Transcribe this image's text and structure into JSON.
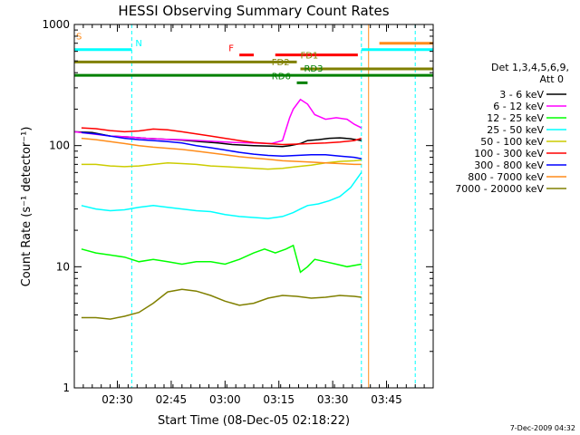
{
  "chart_data": {
    "type": "line",
    "title": "HESSI Observing Summary Count Rates",
    "xlabel": "Start Time (08-Dec-05 02:18:22)",
    "ylabel": "Count Rate (s⁻¹ detector⁻¹)",
    "yscale": "log",
    "xlim_minutes": [
      0,
      100
    ],
    "ylim": [
      1,
      1000
    ],
    "x_ticks": [
      {
        "t": 12,
        "label": "02:30"
      },
      {
        "t": 27,
        "label": "02:45"
      },
      {
        "t": 42,
        "label": "03:00"
      },
      {
        "t": 57,
        "label": "03:15"
      },
      {
        "t": 72,
        "label": "03:30"
      },
      {
        "t": 87,
        "label": "03:45"
      }
    ],
    "y_ticks": [
      {
        "v": 1,
        "label": "1"
      },
      {
        "v": 10,
        "label": "10"
      },
      {
        "v": 100,
        "label": "100"
      },
      {
        "v": 1000,
        "label": "1000"
      }
    ],
    "legend_header": [
      "Det 1,3,4,5,6,9,",
      "Att 0"
    ],
    "series": [
      {
        "name": "3 - 6 keV",
        "color": "#000000",
        "points": [
          [
            0,
            130
          ],
          [
            5,
            128
          ],
          [
            10,
            120
          ],
          [
            15,
            118
          ],
          [
            20,
            115
          ],
          [
            25,
            113
          ],
          [
            30,
            111
          ],
          [
            35,
            108
          ],
          [
            40,
            105
          ],
          [
            44,
            102
          ],
          [
            50,
            100
          ],
          [
            55,
            99
          ],
          [
            58,
            98
          ],
          [
            60,
            100
          ],
          [
            63,
            104
          ],
          [
            65,
            110
          ],
          [
            68,
            112
          ],
          [
            71,
            115
          ],
          [
            74,
            116
          ],
          [
            77,
            114
          ],
          [
            80,
            110
          ]
        ]
      },
      {
        "name": "6 - 12 keV",
        "color": "#ff00ff",
        "points": [
          [
            0,
            130
          ],
          [
            5,
            125
          ],
          [
            10,
            120
          ],
          [
            15,
            118
          ],
          [
            20,
            115
          ],
          [
            25,
            113
          ],
          [
            30,
            112
          ],
          [
            35,
            110
          ],
          [
            40,
            108
          ],
          [
            45,
            106
          ],
          [
            50,
            105
          ],
          [
            55,
            104
          ],
          [
            58,
            110
          ],
          [
            60,
            170
          ],
          [
            61,
            200
          ],
          [
            63,
            240
          ],
          [
            65,
            220
          ],
          [
            67,
            180
          ],
          [
            70,
            165
          ],
          [
            73,
            170
          ],
          [
            76,
            165
          ],
          [
            78,
            150
          ],
          [
            80,
            140
          ]
        ]
      },
      {
        "name": "12 - 25 keV",
        "color": "#00ff00",
        "points": [
          [
            2,
            14
          ],
          [
            6,
            13
          ],
          [
            10,
            12.5
          ],
          [
            14,
            12
          ],
          [
            18,
            11
          ],
          [
            22,
            11.5
          ],
          [
            26,
            11
          ],
          [
            30,
            10.5
          ],
          [
            34,
            11
          ],
          [
            38,
            11
          ],
          [
            42,
            10.5
          ],
          [
            46,
            11.5
          ],
          [
            50,
            13
          ],
          [
            53,
            14
          ],
          [
            56,
            13
          ],
          [
            59,
            14
          ],
          [
            61,
            15
          ],
          [
            63,
            9
          ],
          [
            65,
            10
          ],
          [
            67,
            11.5
          ],
          [
            70,
            11
          ],
          [
            73,
            10.5
          ],
          [
            76,
            10
          ],
          [
            80,
            10.5
          ]
        ]
      },
      {
        "name": "25 - 50 keV",
        "color": "#00ffff",
        "points": [
          [
            2,
            32
          ],
          [
            6,
            30
          ],
          [
            10,
            29
          ],
          [
            14,
            29.5
          ],
          [
            18,
            31
          ],
          [
            22,
            32
          ],
          [
            26,
            31
          ],
          [
            30,
            30
          ],
          [
            34,
            29
          ],
          [
            38,
            28.5
          ],
          [
            42,
            27
          ],
          [
            46,
            26
          ],
          [
            50,
            25.5
          ],
          [
            54,
            25
          ],
          [
            58,
            26
          ],
          [
            61,
            28
          ],
          [
            63,
            30
          ],
          [
            65,
            32
          ],
          [
            68,
            33
          ],
          [
            71,
            35
          ],
          [
            74,
            38
          ],
          [
            77,
            45
          ],
          [
            80,
            60
          ]
        ]
      },
      {
        "name": "50 - 100 keV",
        "color": "#cccc00",
        "points": [
          [
            2,
            70
          ],
          [
            6,
            70
          ],
          [
            10,
            68
          ],
          [
            14,
            67
          ],
          [
            18,
            68
          ],
          [
            22,
            70
          ],
          [
            26,
            72
          ],
          [
            30,
            71
          ],
          [
            34,
            70
          ],
          [
            38,
            68
          ],
          [
            42,
            67
          ],
          [
            46,
            66
          ],
          [
            50,
            65
          ],
          [
            54,
            64
          ],
          [
            58,
            65
          ],
          [
            62,
            67
          ],
          [
            66,
            69
          ],
          [
            70,
            72
          ],
          [
            74,
            74
          ],
          [
            78,
            75
          ],
          [
            80,
            76
          ]
        ]
      },
      {
        "name": "100 - 300 keV",
        "color": "#ff0000",
        "points": [
          [
            2,
            140
          ],
          [
            6,
            138
          ],
          [
            10,
            133
          ],
          [
            14,
            130
          ],
          [
            18,
            132
          ],
          [
            22,
            137
          ],
          [
            26,
            135
          ],
          [
            30,
            130
          ],
          [
            34,
            125
          ],
          [
            38,
            120
          ],
          [
            42,
            115
          ],
          [
            46,
            110
          ],
          [
            50,
            106
          ],
          [
            54,
            104
          ],
          [
            58,
            102
          ],
          [
            62,
            103
          ],
          [
            66,
            104
          ],
          [
            70,
            105
          ],
          [
            74,
            107
          ],
          [
            78,
            110
          ],
          [
            80,
            115
          ]
        ]
      },
      {
        "name": "300 - 800 keV",
        "color": "#0000ff",
        "points": [
          [
            2,
            128
          ],
          [
            6,
            125
          ],
          [
            10,
            120
          ],
          [
            14,
            115
          ],
          [
            18,
            112
          ],
          [
            22,
            110
          ],
          [
            26,
            108
          ],
          [
            30,
            105
          ],
          [
            34,
            100
          ],
          [
            38,
            96
          ],
          [
            42,
            92
          ],
          [
            46,
            88
          ],
          [
            50,
            85
          ],
          [
            54,
            83
          ],
          [
            58,
            82
          ],
          [
            62,
            83
          ],
          [
            66,
            84
          ],
          [
            70,
            84
          ],
          [
            74,
            82
          ],
          [
            78,
            80
          ],
          [
            80,
            78
          ]
        ]
      },
      {
        "name": "800 - 7000 keV",
        "color": "#ff8c1a",
        "points": [
          [
            2,
            115
          ],
          [
            6,
            112
          ],
          [
            10,
            108
          ],
          [
            14,
            104
          ],
          [
            18,
            100
          ],
          [
            22,
            97
          ],
          [
            26,
            95
          ],
          [
            30,
            93
          ],
          [
            34,
            90
          ],
          [
            38,
            87
          ],
          [
            42,
            84
          ],
          [
            46,
            81
          ],
          [
            50,
            79
          ],
          [
            54,
            77
          ],
          [
            58,
            75
          ],
          [
            62,
            74
          ],
          [
            66,
            73
          ],
          [
            70,
            72
          ],
          [
            74,
            71
          ],
          [
            78,
            70
          ],
          [
            80,
            70
          ]
        ]
      },
      {
        "name": "7000 - 20000 keV",
        "color": "#808000",
        "points": [
          [
            2,
            3.8
          ],
          [
            6,
            3.8
          ],
          [
            10,
            3.7
          ],
          [
            14,
            3.9
          ],
          [
            18,
            4.2
          ],
          [
            22,
            5
          ],
          [
            26,
            6.2
          ],
          [
            30,
            6.5
          ],
          [
            34,
            6.3
          ],
          [
            38,
            5.8
          ],
          [
            42,
            5.2
          ],
          [
            46,
            4.8
          ],
          [
            50,
            5
          ],
          [
            54,
            5.5
          ],
          [
            58,
            5.8
          ],
          [
            62,
            5.7
          ],
          [
            66,
            5.5
          ],
          [
            70,
            5.6
          ],
          [
            74,
            5.8
          ],
          [
            78,
            5.7
          ],
          [
            80,
            5.6
          ]
        ]
      }
    ],
    "flags": [
      {
        "label": "S",
        "color": "#ff8c1a",
        "value": 700,
        "start": 0,
        "end": 0,
        "label_at": 0.5
      },
      {
        "label": "",
        "color": "#ff8c1a",
        "value": 700,
        "start": 85,
        "end": 100
      },
      {
        "label": "N",
        "color": "#00ffff",
        "value": 620,
        "start": 0,
        "end": 16,
        "label_at": 17
      },
      {
        "label": "",
        "color": "#00ffff",
        "value": 620,
        "start": 80,
        "end": 100
      },
      {
        "label": "F",
        "color": "#ff0000",
        "value": 560,
        "start": 46,
        "end": 50,
        "label_at": 43
      },
      {
        "label": "",
        "color": "#ff0000",
        "value": 560,
        "start": 56,
        "end": 79
      },
      {
        "label": "FD1",
        "color": "#808000",
        "value": 490,
        "start": 0,
        "end": 62,
        "label_at": 63
      },
      {
        "label": "FD2",
        "color": "#808000",
        "value": 430,
        "start": 63,
        "end": 100,
        "label_at": 55
      },
      {
        "label": "RD3",
        "color": "#008000",
        "value": 380,
        "start": 0,
        "end": 100,
        "label_at": 64
      },
      {
        "label": "RD6",
        "color": "#008000",
        "value": 330,
        "start": 62,
        "end": 65,
        "label_at": 55
      }
    ],
    "vlines": [
      {
        "t": 0,
        "color": "#00ffff"
      },
      {
        "t": 16,
        "color": "#00ffff"
      },
      {
        "t": 80,
        "color": "#00ffff"
      },
      {
        "t": 95,
        "color": "#00ffff"
      },
      {
        "t": 82,
        "color": "#ff8c1a"
      }
    ],
    "footer_date": "7-Dec-2009 04:32"
  }
}
